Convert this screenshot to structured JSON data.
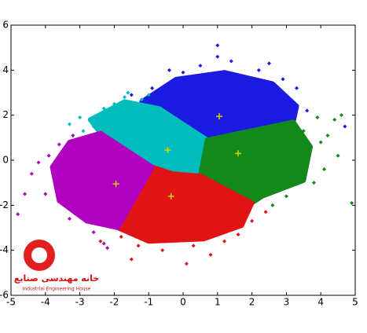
{
  "chart_data": {
    "type": "scatter",
    "xlim": [
      -5,
      5
    ],
    "ylim": [
      -6,
      6
    ],
    "xticks": [
      -5,
      -4,
      -3,
      -2,
      -1,
      0,
      1,
      2,
      3,
      4,
      5
    ],
    "yticks": [
      -6,
      -4,
      -2,
      0,
      2,
      4,
      6
    ],
    "series": [
      {
        "color": "#1a1ae0",
        "x": [
          -1.5,
          -0.9,
          0,
          0.5,
          1.4,
          2.2,
          2.9,
          3.3,
          3.6,
          2.5,
          1.0,
          1.0,
          4.7,
          -0.4
        ],
        "y": [
          2.9,
          3.2,
          3.9,
          4.2,
          4.4,
          4.0,
          3.6,
          3.2,
          2.2,
          4.3,
          4.6,
          5.1,
          1.5,
          4.0
        ],
        "region_x": [
          -1.2,
          -0.2,
          1.2,
          2.6,
          3.3,
          3.2,
          0.7,
          -0.7
        ],
        "region_y": [
          2.6,
          3.6,
          3.9,
          3.4,
          2.4,
          1.7,
          0.9,
          2.3
        ]
      },
      {
        "color": "#00bcbc",
        "x": [
          -3.0,
          -2.9,
          -2.3,
          -1.7,
          -1.6,
          -1.2,
          -2.6,
          -3.3,
          -1.0,
          -2.0
        ],
        "y": [
          1.9,
          1.3,
          2.3,
          2.8,
          3.0,
          2.7,
          1.5,
          1.6,
          2.9,
          2.5
        ],
        "region_x": [
          -2.7,
          -1.7,
          -0.7,
          0.7,
          0.5,
          -0.3,
          -0.9,
          -2.4
        ],
        "region_y": [
          1.8,
          2.6,
          2.3,
          0.9,
          -0.7,
          -0.6,
          -0.3,
          1.2
        ]
      },
      {
        "color": "#12891a",
        "x": [
          3.9,
          4.2,
          4.4,
          4.5,
          4.1,
          3.8,
          3.0,
          2.6,
          4.9,
          4.6,
          3.5,
          4.0
        ],
        "y": [
          1.9,
          1.1,
          1.8,
          0.2,
          -0.4,
          -1.0,
          -1.6,
          -2.0,
          -1.9,
          2.0,
          1.3,
          0.8
        ],
        "region_x": [
          0.7,
          3.2,
          3.7,
          3.5,
          2.3,
          2.0,
          0.5
        ],
        "region_y": [
          0.9,
          1.7,
          0.6,
          -0.9,
          -1.6,
          -1.9,
          -0.7
        ]
      },
      {
        "color": "#e01414",
        "x": [
          -1.3,
          -0.6,
          0.3,
          0.8,
          1.2,
          2.0,
          2.4,
          -1.8,
          0.1,
          -1.5,
          -2.4,
          1.6
        ],
        "y": [
          -3.8,
          -4.0,
          -3.8,
          -4.2,
          -3.6,
          -2.7,
          -2.3,
          -3.4,
          -4.6,
          -4.4,
          -3.6,
          -3.3
        ],
        "region_x": [
          -0.9,
          -0.3,
          0.5,
          2.0,
          1.7,
          0.6,
          -1.0,
          -1.9
        ],
        "region_y": [
          -0.3,
          -0.6,
          -0.7,
          -1.9,
          -2.9,
          -3.5,
          -3.6,
          -3.0
        ]
      },
      {
        "color": "#b000c0",
        "x": [
          -4.2,
          -4.4,
          -4.0,
          -4.6,
          -3.3,
          -2.6,
          -2.3,
          -3.9,
          -3.6,
          -4.8,
          -2.2,
          -3.2
        ],
        "y": [
          -0.1,
          -0.6,
          -1.5,
          -1.5,
          -2.6,
          -3.2,
          -3.7,
          0.2,
          0.7,
          -2.4,
          -3.9,
          1.1
        ],
        "region_x": [
          -2.4,
          -0.9,
          -1.9,
          -2.8,
          -3.6,
          -3.8,
          -3.3
        ],
        "region_y": [
          1.2,
          -0.3,
          -3.0,
          -2.7,
          -1.8,
          -0.3,
          0.8
        ]
      }
    ],
    "centroids": {
      "color": "#d4d400",
      "x": [
        1.05,
        -0.45,
        1.6,
        -0.35,
        -1.95
      ],
      "y": [
        1.95,
        0.45,
        0.3,
        -1.6,
        -1.05
      ]
    }
  },
  "logo": {
    "title": "خانه مهندسی صنایع",
    "subtitle": "Industrial Engineering House"
  }
}
